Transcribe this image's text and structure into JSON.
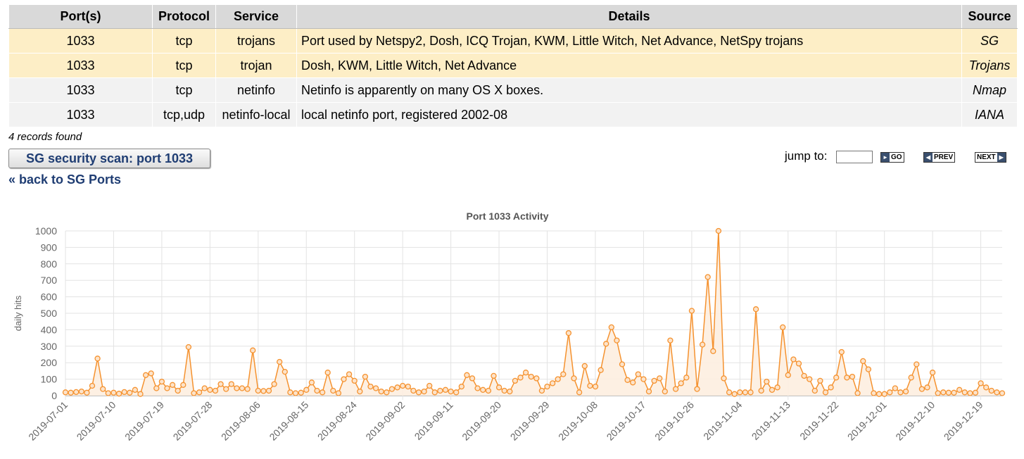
{
  "table": {
    "headers": [
      "Port(s)",
      "Protocol",
      "Service",
      "Details",
      "Source"
    ],
    "rows": [
      {
        "port": "1033",
        "protocol": "tcp",
        "service": "trojans",
        "details": "Port used by Netspy2, Dosh, ICQ Trojan, KWM, Little Witch, Net Advance, NetSpy trojans",
        "source": "SG"
      },
      {
        "port": "1033",
        "protocol": "tcp",
        "service": "trojan",
        "details": "Dosh, KWM, Little Witch, Net Advance",
        "source": "Trojans"
      },
      {
        "port": "1033",
        "protocol": "tcp",
        "service": "netinfo",
        "details": "Netinfo is apparently on many OS X boxes.",
        "source": "Nmap"
      },
      {
        "port": "1033",
        "protocol": "tcp,udp",
        "service": "netinfo-local",
        "details": "local netinfo port, registered 2002-08",
        "source": "IANA"
      }
    ]
  },
  "records_found": "4 records found",
  "scan_button": "SG security scan: port 1033",
  "back_link": "« back to SG Ports",
  "nav": {
    "jump_label": "jump to:",
    "jump_value": "",
    "go": "GO",
    "prev": "PREV",
    "next": "NEXT"
  },
  "colors": {
    "line": "#f5922f",
    "fill": "#fdeee0",
    "header_bg": "#d9d9d9",
    "highlight_row": "#fdeec6",
    "link": "#1f3d73"
  },
  "chart_data": {
    "type": "area",
    "title": "Port 1033 Activity",
    "ylabel": "daily hits",
    "xlabel": "",
    "ylim": [
      0,
      1000
    ],
    "yticks": [
      0,
      100,
      200,
      300,
      400,
      500,
      600,
      700,
      800,
      900,
      1000
    ],
    "grid": true,
    "start_date": "2019-07-01",
    "xticks": [
      "2019-07-01",
      "2019-07-10",
      "2019-07-19",
      "2019-07-28",
      "2019-08-06",
      "2019-08-15",
      "2019-08-24",
      "2019-09-02",
      "2019-09-11",
      "2019-09-20",
      "2019-09-29",
      "2019-10-08",
      "2019-10-17",
      "2019-10-26",
      "2019-11-04",
      "2019-11-13",
      "2019-11-22",
      "2019-12-01",
      "2019-12-10",
      "2019-12-19"
    ],
    "series": [
      {
        "values": [
          20,
          18,
          22,
          25,
          18,
          60,
          225,
          40,
          15,
          18,
          12,
          22,
          18,
          35,
          10,
          125,
          135,
          45,
          85,
          45,
          65,
          30,
          65,
          295,
          15,
          20,
          45,
          35,
          30,
          70,
          40,
          70,
          45,
          45,
          40,
          275,
          30,
          28,
          30,
          70,
          205,
          145,
          20,
          15,
          18,
          35,
          80,
          30,
          20,
          140,
          30,
          15,
          100,
          130,
          90,
          25,
          115,
          55,
          45,
          25,
          20,
          40,
          50,
          60,
          55,
          30,
          20,
          25,
          60,
          20,
          30,
          35,
          25,
          20,
          55,
          125,
          105,
          45,
          35,
          30,
          120,
          50,
          30,
          25,
          90,
          110,
          140,
          115,
          105,
          30,
          55,
          75,
          100,
          130,
          380,
          105,
          20,
          180,
          60,
          55,
          155,
          315,
          415,
          335,
          190,
          95,
          80,
          130,
          100,
          25,
          90,
          105,
          25,
          335,
          40,
          75,
          110,
          515,
          40,
          310,
          720,
          270,
          1000,
          105,
          20,
          10,
          20,
          20,
          20,
          525,
          30,
          85,
          35,
          50,
          415,
          125,
          220,
          195,
          120,
          100,
          30,
          90,
          20,
          50,
          110,
          265,
          110,
          115,
          15,
          210,
          160,
          15,
          10,
          10,
          20,
          45,
          20,
          25,
          110,
          190,
          40,
          50,
          140,
          15,
          20,
          18,
          18,
          35,
          20,
          15,
          18,
          75,
          50,
          30,
          20,
          15
        ]
      }
    ]
  }
}
